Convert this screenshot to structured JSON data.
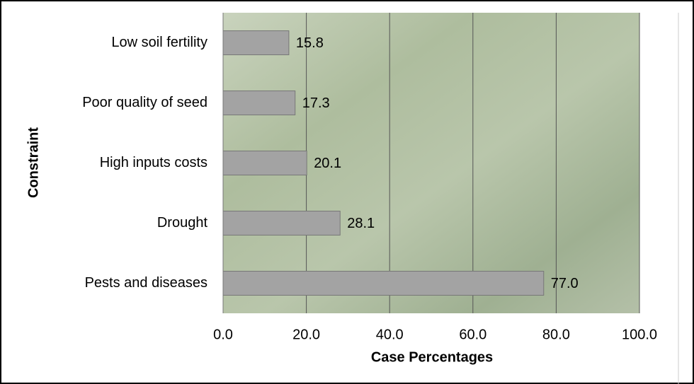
{
  "chart_data": {
    "type": "barh",
    "xlabel": "Case Percentages",
    "ylabel": "Constraint",
    "categories": [
      "Low soil fertility",
      "Poor quality of seed",
      "High inputs costs",
      "Drought",
      "Pests and diseases"
    ],
    "values": [
      15.8,
      17.3,
      20.1,
      28.1,
      77.0
    ],
    "value_labels": [
      "15.8",
      "17.3",
      "20.1",
      "28.1",
      "77.0"
    ],
    "color": "#a3a3a3",
    "xlim": [
      0,
      100
    ],
    "xticks": [
      {
        "value": 0,
        "label": "0.0"
      },
      {
        "value": 20,
        "label": "20.0"
      },
      {
        "value": 40,
        "label": "40.0"
      },
      {
        "value": 60,
        "label": "60.0"
      },
      {
        "value": 80,
        "label": "80.0"
      },
      {
        "value": 100,
        "label": "100.0"
      }
    ],
    "grid": true
  }
}
